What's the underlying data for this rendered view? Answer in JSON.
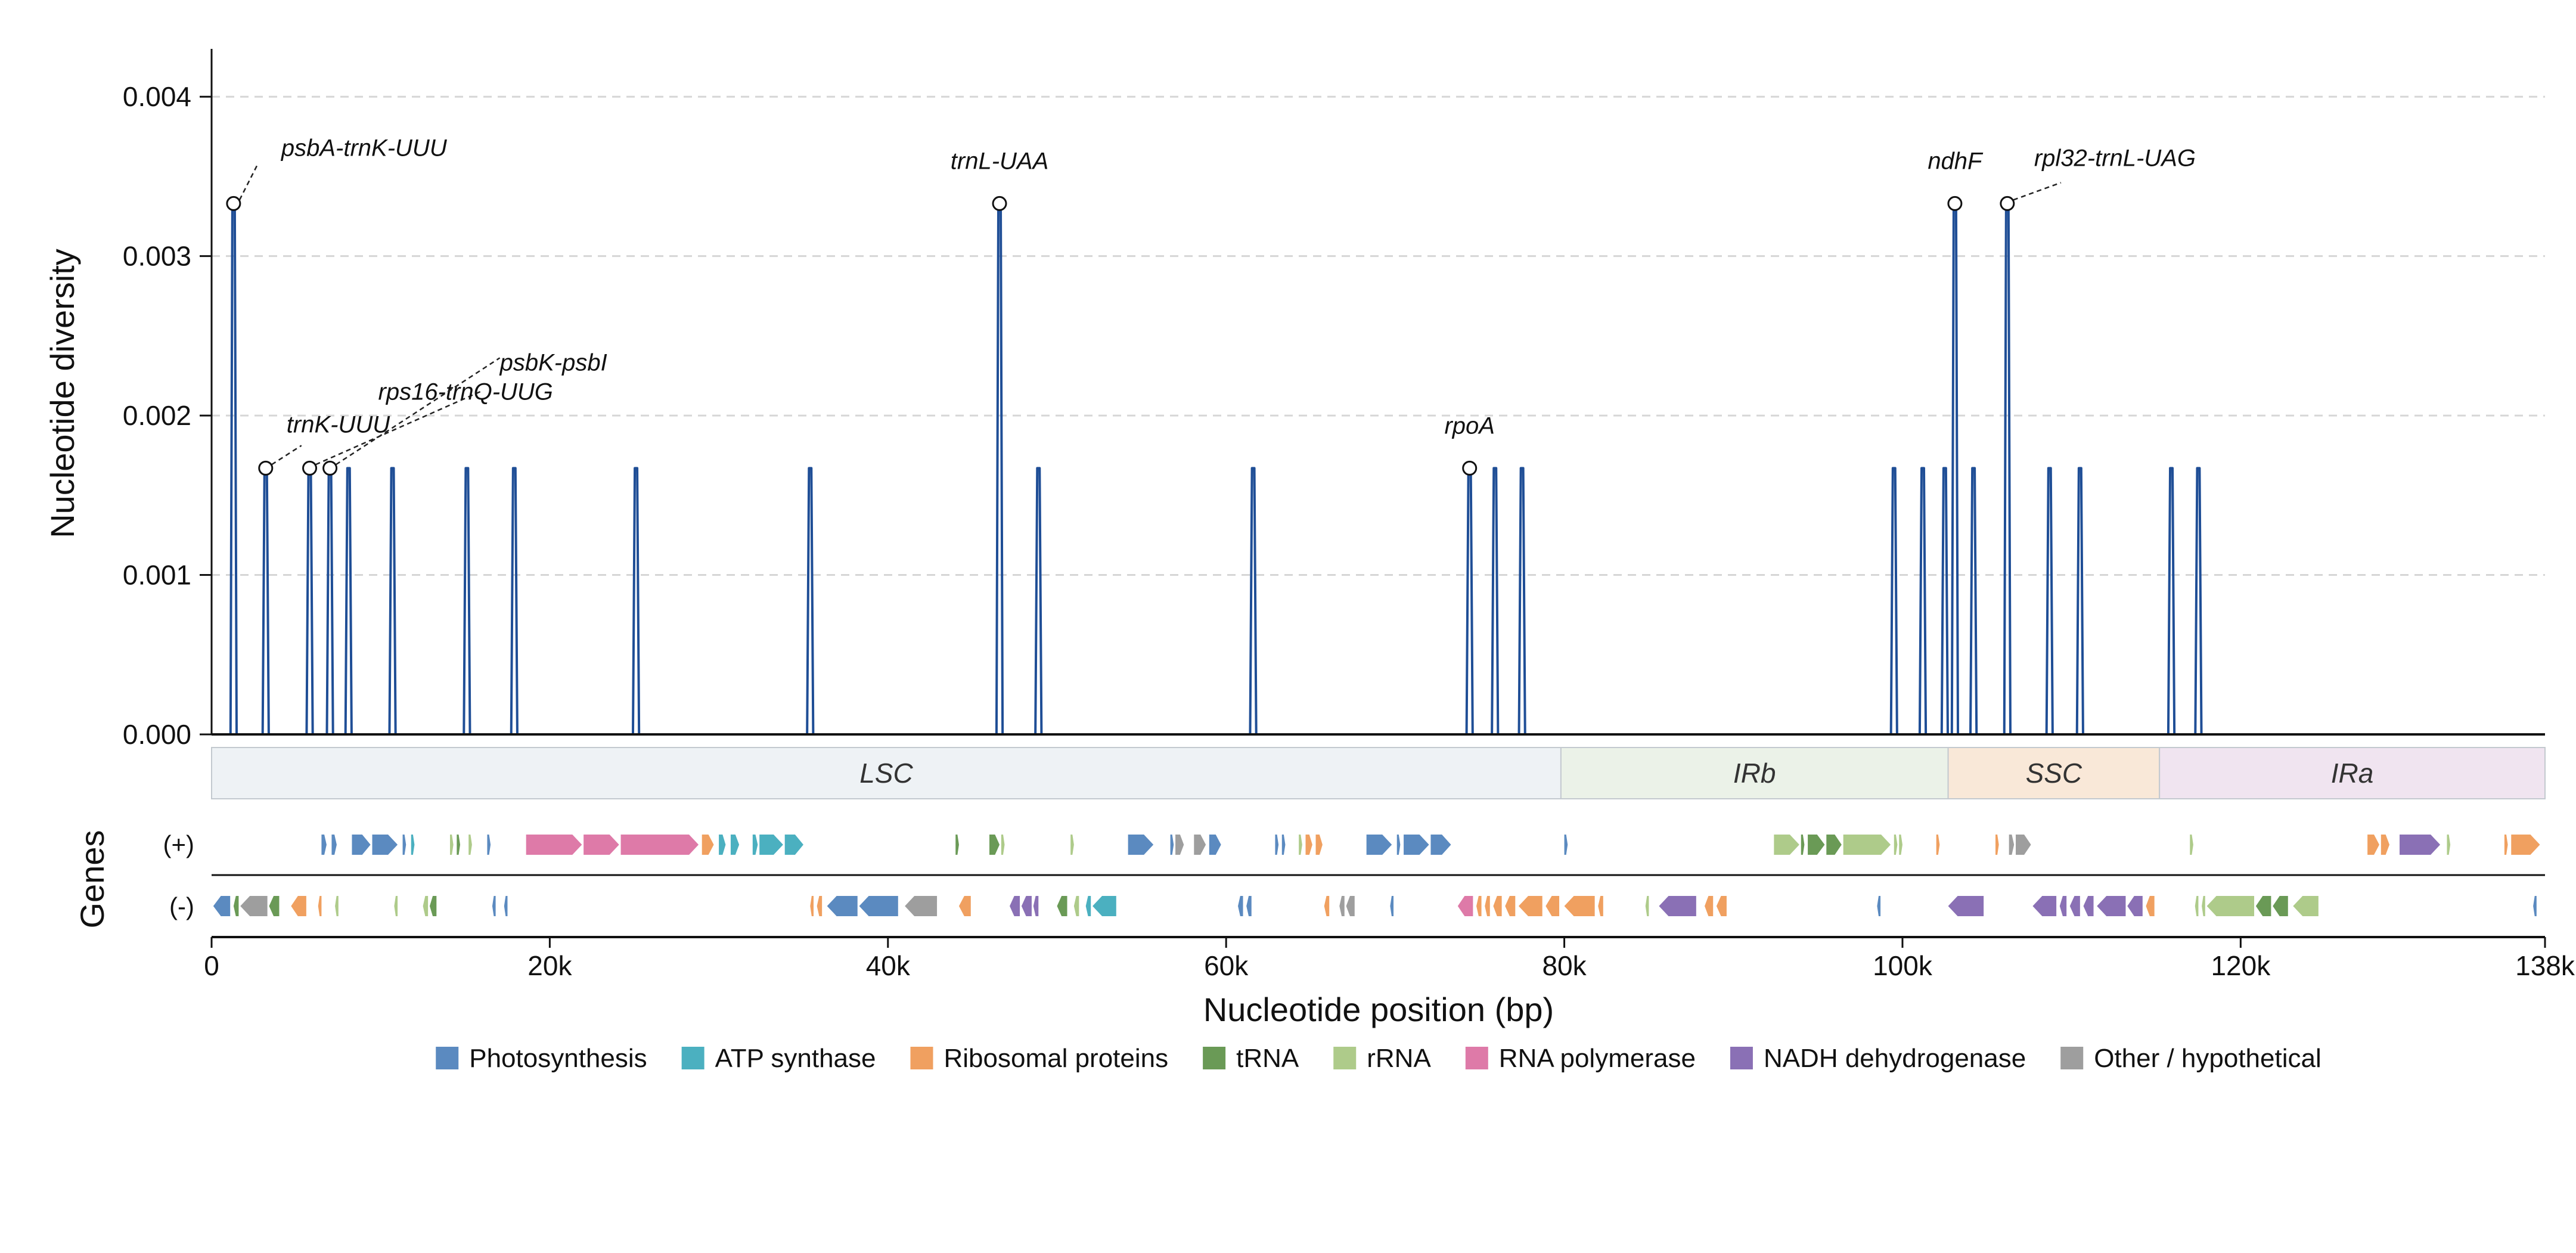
{
  "chart_data": {
    "type": "line",
    "ylabel": "Nucleotide diversity",
    "xlabel": "Nucleotide position (bp)",
    "genes_label": "Genes",
    "strand_labels": {
      "plus": "(+)",
      "minus": "(-)"
    },
    "xlim": [
      0,
      138000
    ],
    "ylim": [
      0,
      0.0043
    ],
    "yticks": [
      0.0,
      0.001,
      0.002,
      0.003,
      0.004
    ],
    "ytick_labels": [
      "0.000",
      "0.001",
      "0.002",
      "0.003",
      "0.004"
    ],
    "xticks": [
      0,
      20000,
      40000,
      60000,
      80000,
      100000,
      120000,
      138000
    ],
    "xtick_labels": [
      "0",
      "20k",
      "40k",
      "60k",
      "80k",
      "100k",
      "120k",
      "138k"
    ],
    "grid": "horizontal dashed",
    "line_color": "#1f4e96",
    "peaks": [
      {
        "x": 1300,
        "y": 0.00333
      },
      {
        "x": 3200,
        "y": 0.00167
      },
      {
        "x": 5800,
        "y": 0.00167
      },
      {
        "x": 7000,
        "y": 0.00167
      },
      {
        "x": 8100,
        "y": 0.00167
      },
      {
        "x": 10700,
        "y": 0.00167
      },
      {
        "x": 15100,
        "y": 0.00167
      },
      {
        "x": 17900,
        "y": 0.00167
      },
      {
        "x": 25100,
        "y": 0.00167
      },
      {
        "x": 35400,
        "y": 0.00167
      },
      {
        "x": 46600,
        "y": 0.00333
      },
      {
        "x": 48900,
        "y": 0.00167
      },
      {
        "x": 61600,
        "y": 0.00167
      },
      {
        "x": 74400,
        "y": 0.00167
      },
      {
        "x": 75900,
        "y": 0.00167
      },
      {
        "x": 77500,
        "y": 0.00167
      },
      {
        "x": 99500,
        "y": 0.00167
      },
      {
        "x": 101200,
        "y": 0.00167
      },
      {
        "x": 102500,
        "y": 0.00167
      },
      {
        "x": 103100,
        "y": 0.00333
      },
      {
        "x": 104200,
        "y": 0.00167
      },
      {
        "x": 106200,
        "y": 0.00333
      },
      {
        "x": 108700,
        "y": 0.00167
      },
      {
        "x": 110500,
        "y": 0.00167
      },
      {
        "x": 115900,
        "y": 0.00167
      },
      {
        "x": 117500,
        "y": 0.00167
      }
    ],
    "annotations": [
      {
        "label": "psbA-trnK-UUU",
        "x": 1300,
        "y": 0.00333
      },
      {
        "label": "trnK-UUU",
        "x": 3200,
        "y": 0.00167
      },
      {
        "label": "rps16-trnQ-UUG",
        "x": 5800,
        "y": 0.00167
      },
      {
        "label": "psbK-psbI",
        "x": 7000,
        "y": 0.00167
      },
      {
        "label": "trnL-UAA",
        "x": 46600,
        "y": 0.00333
      },
      {
        "label": "rpoA",
        "x": 74400,
        "y": 0.00167
      },
      {
        "label": "ndhF",
        "x": 103100,
        "y": 0.00333
      },
      {
        "label": "rpl32-trnL-UAG",
        "x": 106200,
        "y": 0.00333
      }
    ],
    "regions": [
      {
        "label": "LSC",
        "start": 0,
        "end": 79800,
        "color": "#eef2f5"
      },
      {
        "label": "IRb",
        "start": 79800,
        "end": 102700,
        "color": "#ebf2e8"
      },
      {
        "label": "SSC",
        "start": 102700,
        "end": 115200,
        "color": "#f9e8d8"
      },
      {
        "label": "IRa",
        "start": 115200,
        "end": 138000,
        "color": "#f0e4f0"
      }
    ],
    "legend_position": "bottom-center",
    "legend": [
      {
        "label": "Photosynthesis",
        "color": "#5b8ac0"
      },
      {
        "label": "ATP synthase",
        "color": "#4bb0c0"
      },
      {
        "label": "Ribosomal proteins",
        "color": "#f0a060"
      },
      {
        "label": "tRNA",
        "color": "#6a9a56"
      },
      {
        "label": "rRNA",
        "color": "#aecb8a"
      },
      {
        "label": "RNA polymerase",
        "color": "#de7aa8"
      },
      {
        "label": "NADH dehydrogenase",
        "color": "#8a70b5"
      },
      {
        "label": "Other / hypothetical",
        "color": "#9e9e9e"
      }
    ],
    "genes_plus": [
      {
        "start": 6500,
        "end": 6800,
        "cat": "Photosynthesis"
      },
      {
        "start": 7100,
        "end": 7400,
        "cat": "Photosynthesis"
      },
      {
        "start": 8300,
        "end": 9400,
        "cat": "Photosynthesis"
      },
      {
        "start": 9500,
        "end": 11000,
        "cat": "Photosynthesis"
      },
      {
        "start": 11300,
        "end": 11500,
        "cat": "Photosynthesis"
      },
      {
        "start": 11800,
        "end": 12000,
        "cat": "ATP synthase"
      },
      {
        "start": 14100,
        "end": 14300,
        "cat": "rRNA"
      },
      {
        "start": 14500,
        "end": 14700,
        "cat": "tRNA"
      },
      {
        "start": 15200,
        "end": 15400,
        "cat": "rRNA"
      },
      {
        "start": 16300,
        "end": 16500,
        "cat": "Photosynthesis"
      },
      {
        "start": 18600,
        "end": 21900,
        "cat": "RNA polymerase"
      },
      {
        "start": 22000,
        "end": 24100,
        "cat": "RNA polymerase"
      },
      {
        "start": 24200,
        "end": 28800,
        "cat": "RNA polymerase"
      },
      {
        "start": 29000,
        "end": 29700,
        "cat": "Ribosomal proteins"
      },
      {
        "start": 30000,
        "end": 30400,
        "cat": "ATP synthase"
      },
      {
        "start": 30700,
        "end": 31200,
        "cat": "ATP synthase"
      },
      {
        "start": 32000,
        "end": 32300,
        "cat": "ATP synthase"
      },
      {
        "start": 32400,
        "end": 33800,
        "cat": "ATP synthase"
      },
      {
        "start": 33900,
        "end": 35000,
        "cat": "ATP synthase"
      },
      {
        "start": 44000,
        "end": 44200,
        "cat": "tRNA"
      },
      {
        "start": 46000,
        "end": 46600,
        "cat": "tRNA"
      },
      {
        "start": 46700,
        "end": 46900,
        "cat": "rRNA"
      },
      {
        "start": 50800,
        "end": 51000,
        "cat": "rRNA"
      },
      {
        "start": 54200,
        "end": 55700,
        "cat": "Photosynthesis"
      },
      {
        "start": 56700,
        "end": 56900,
        "cat": "Photosynthesis"
      },
      {
        "start": 57000,
        "end": 57500,
        "cat": "Other / hypothetical"
      },
      {
        "start": 58100,
        "end": 58800,
        "cat": "Other / hypothetical"
      },
      {
        "start": 59000,
        "end": 59700,
        "cat": "Photosynthesis"
      },
      {
        "start": 62900,
        "end": 63100,
        "cat": "Photosynthesis"
      },
      {
        "start": 63300,
        "end": 63500,
        "cat": "Photosynthesis"
      },
      {
        "start": 64300,
        "end": 64500,
        "cat": "rRNA"
      },
      {
        "start": 64700,
        "end": 65100,
        "cat": "Ribosomal proteins"
      },
      {
        "start": 65300,
        "end": 65700,
        "cat": "Ribosomal proteins"
      },
      {
        "start": 68300,
        "end": 69800,
        "cat": "Photosynthesis"
      },
      {
        "start": 70100,
        "end": 70300,
        "cat": "Photosynthesis"
      },
      {
        "start": 70500,
        "end": 72000,
        "cat": "Photosynthesis"
      },
      {
        "start": 72100,
        "end": 73300,
        "cat": "Photosynthesis"
      },
      {
        "start": 80000,
        "end": 80200,
        "cat": "Photosynthesis"
      },
      {
        "start": 92400,
        "end": 93900,
        "cat": "rRNA"
      },
      {
        "start": 94000,
        "end": 94200,
        "cat": "tRNA"
      },
      {
        "start": 94400,
        "end": 95400,
        "cat": "tRNA"
      },
      {
        "start": 95500,
        "end": 96400,
        "cat": "tRNA"
      },
      {
        "start": 96500,
        "end": 99300,
        "cat": "rRNA"
      },
      {
        "start": 99500,
        "end": 99700,
        "cat": "rRNA"
      },
      {
        "start": 99800,
        "end": 100000,
        "cat": "rRNA"
      },
      {
        "start": 102000,
        "end": 102200,
        "cat": "Ribosomal proteins"
      },
      {
        "start": 105500,
        "end": 105700,
        "cat": "Ribosomal proteins"
      },
      {
        "start": 106300,
        "end": 106600,
        "cat": "Other / hypothetical"
      },
      {
        "start": 106700,
        "end": 107600,
        "cat": "Other / hypothetical"
      },
      {
        "start": 117000,
        "end": 117200,
        "cat": "rRNA"
      },
      {
        "start": 127500,
        "end": 128200,
        "cat": "Ribosomal proteins"
      },
      {
        "start": 128300,
        "end": 128800,
        "cat": "Ribosomal proteins"
      },
      {
        "start": 129400,
        "end": 131800,
        "cat": "NADH dehydrogenase"
      },
      {
        "start": 132200,
        "end": 132400,
        "cat": "rRNA"
      },
      {
        "start": 135600,
        "end": 135800,
        "cat": "Ribosomal proteins"
      },
      {
        "start": 136000,
        "end": 137700,
        "cat": "Ribosomal proteins"
      }
    ],
    "genes_minus": [
      {
        "start": 100,
        "end": 1100,
        "cat": "Photosynthesis"
      },
      {
        "start": 1300,
        "end": 1600,
        "cat": "tRNA"
      },
      {
        "start": 1700,
        "end": 3300,
        "cat": "Other / hypothetical"
      },
      {
        "start": 3400,
        "end": 4000,
        "cat": "tRNA"
      },
      {
        "start": 4700,
        "end": 5600,
        "cat": "Ribosomal proteins"
      },
      {
        "start": 6300,
        "end": 6500,
        "cat": "Ribosomal proteins"
      },
      {
        "start": 7300,
        "end": 7500,
        "cat": "rRNA"
      },
      {
        "start": 10800,
        "end": 11000,
        "cat": "rRNA"
      },
      {
        "start": 12500,
        "end": 12800,
        "cat": "rRNA"
      },
      {
        "start": 12900,
        "end": 13300,
        "cat": "tRNA"
      },
      {
        "start": 16600,
        "end": 16800,
        "cat": "Photosynthesis"
      },
      {
        "start": 17300,
        "end": 17500,
        "cat": "Photosynthesis"
      },
      {
        "start": 35400,
        "end": 35600,
        "cat": "Ribosomal proteins"
      },
      {
        "start": 35800,
        "end": 36100,
        "cat": "Ribosomal proteins"
      },
      {
        "start": 36400,
        "end": 38200,
        "cat": "Photosynthesis"
      },
      {
        "start": 38300,
        "end": 40600,
        "cat": "Photosynthesis"
      },
      {
        "start": 41000,
        "end": 42900,
        "cat": "Other / hypothetical"
      },
      {
        "start": 44200,
        "end": 44900,
        "cat": "Ribosomal proteins"
      },
      {
        "start": 47200,
        "end": 47800,
        "cat": "NADH dehydrogenase"
      },
      {
        "start": 47900,
        "end": 48500,
        "cat": "NADH dehydrogenase"
      },
      {
        "start": 48600,
        "end": 48900,
        "cat": "NADH dehydrogenase"
      },
      {
        "start": 50000,
        "end": 50600,
        "cat": "tRNA"
      },
      {
        "start": 51000,
        "end": 51300,
        "cat": "rRNA"
      },
      {
        "start": 51700,
        "end": 52000,
        "cat": "ATP synthase"
      },
      {
        "start": 52100,
        "end": 53500,
        "cat": "ATP synthase"
      },
      {
        "start": 60700,
        "end": 61000,
        "cat": "Photosynthesis"
      },
      {
        "start": 61200,
        "end": 61500,
        "cat": "Photosynthesis"
      },
      {
        "start": 65800,
        "end": 66100,
        "cat": "Ribosomal proteins"
      },
      {
        "start": 66700,
        "end": 67000,
        "cat": "Other / hypothetical"
      },
      {
        "start": 67100,
        "end": 67600,
        "cat": "Other / hypothetical"
      },
      {
        "start": 69700,
        "end": 69900,
        "cat": "Photosynthesis"
      },
      {
        "start": 73700,
        "end": 74600,
        "cat": "RNA polymerase"
      },
      {
        "start": 74800,
        "end": 75100,
        "cat": "Ribosomal proteins"
      },
      {
        "start": 75300,
        "end": 75600,
        "cat": "Ribosomal proteins"
      },
      {
        "start": 75800,
        "end": 76300,
        "cat": "Ribosomal proteins"
      },
      {
        "start": 76500,
        "end": 77100,
        "cat": "Ribosomal proteins"
      },
      {
        "start": 77300,
        "end": 78700,
        "cat": "Ribosomal proteins"
      },
      {
        "start": 78900,
        "end": 79700,
        "cat": "Ribosomal proteins"
      },
      {
        "start": 80000,
        "end": 81800,
        "cat": "Ribosomal proteins"
      },
      {
        "start": 82000,
        "end": 82300,
        "cat": "Ribosomal proteins"
      },
      {
        "start": 84800,
        "end": 85000,
        "cat": "rRNA"
      },
      {
        "start": 85600,
        "end": 87800,
        "cat": "NADH dehydrogenase"
      },
      {
        "start": 88300,
        "end": 88800,
        "cat": "Ribosomal proteins"
      },
      {
        "start": 89000,
        "end": 89600,
        "cat": "Ribosomal proteins"
      },
      {
        "start": 98500,
        "end": 98700,
        "cat": "Photosynthesis"
      },
      {
        "start": 102700,
        "end": 104800,
        "cat": "NADH dehydrogenase"
      },
      {
        "start": 107700,
        "end": 109100,
        "cat": "NADH dehydrogenase"
      },
      {
        "start": 109300,
        "end": 109700,
        "cat": "NADH dehydrogenase"
      },
      {
        "start": 109900,
        "end": 110500,
        "cat": "NADH dehydrogenase"
      },
      {
        "start": 110700,
        "end": 111300,
        "cat": "NADH dehydrogenase"
      },
      {
        "start": 111500,
        "end": 113200,
        "cat": "NADH dehydrogenase"
      },
      {
        "start": 113300,
        "end": 114200,
        "cat": "NADH dehydrogenase"
      },
      {
        "start": 114400,
        "end": 114900,
        "cat": "Ribosomal proteins"
      },
      {
        "start": 117300,
        "end": 117500,
        "cat": "rRNA"
      },
      {
        "start": 117700,
        "end": 117900,
        "cat": "rRNA"
      },
      {
        "start": 118000,
        "end": 120800,
        "cat": "rRNA"
      },
      {
        "start": 120900,
        "end": 121800,
        "cat": "tRNA"
      },
      {
        "start": 121900,
        "end": 122800,
        "cat": "tRNA"
      },
      {
        "start": 123100,
        "end": 124600,
        "cat": "rRNA"
      },
      {
        "start": 137300,
        "end": 137500,
        "cat": "Photosynthesis"
      }
    ]
  }
}
